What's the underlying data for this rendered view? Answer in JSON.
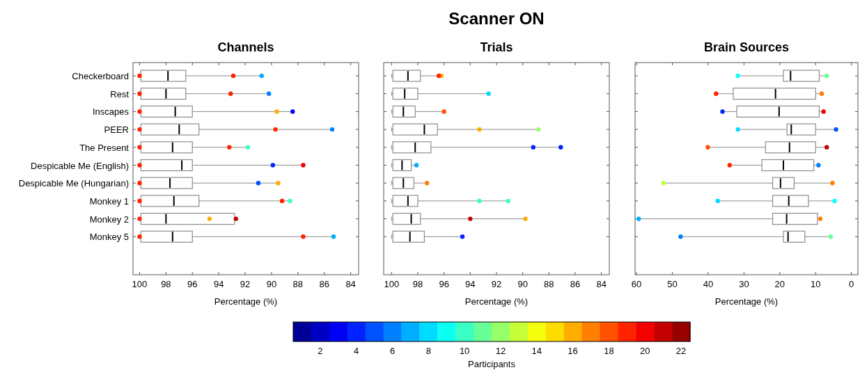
{
  "chart_data": [
    {
      "type": "box",
      "orientation": "horizontal",
      "title": "Channels",
      "xlabel": "Percentage (%)",
      "categories": [
        "Checkerboard",
        "Rest",
        "Inscapes",
        "PEER",
        "The Present",
        "Despicable Me (English)",
        "Despicable Me (Hungarian)",
        "Monkey 1",
        "Monkey 2",
        "Monkey 5"
      ],
      "xlim": [
        100.5,
        83.4
      ],
      "xticks": [
        100,
        98,
        96,
        94,
        92,
        90,
        88,
        86,
        84
      ],
      "boxes": [
        {
          "low": 90.75,
          "q1": 96.5,
          "median": 97.85,
          "q3": 99.9,
          "high": 100
        },
        {
          "low": 90.2,
          "q1": 96.5,
          "median": 98.0,
          "q3": 99.9,
          "high": 100
        },
        {
          "low": 88.4,
          "q1": 96.0,
          "median": 97.3,
          "q3": 99.9,
          "high": 100
        },
        {
          "low": 85.4,
          "q1": 95.5,
          "median": 97.0,
          "q3": 99.9,
          "high": 100
        },
        {
          "low": 91.8,
          "q1": 96.0,
          "median": 97.5,
          "q3": 99.9,
          "high": 100
        },
        {
          "low": 87.6,
          "q1": 96.0,
          "median": 96.8,
          "q3": 99.9,
          "high": 100
        },
        {
          "low": 89.5,
          "q1": 96.0,
          "median": 97.7,
          "q3": 99.9,
          "high": 100
        },
        {
          "low": 88.6,
          "q1": 95.5,
          "median": 97.4,
          "q3": 99.9,
          "high": 100
        },
        {
          "low": 92.7,
          "q1": 92.8,
          "median": 98.0,
          "q3": 99.9,
          "high": 100
        },
        {
          "low": 85.3,
          "q1": 96.0,
          "median": 97.5,
          "q3": 99.9,
          "high": 100
        }
      ],
      "series": [
        {
          "type": "scatter",
          "x": [
            "Checkerboard",
            "Checkerboard",
            "Checkerboard",
            "Rest",
            "Rest",
            "Rest",
            "Inscapes",
            "Inscapes",
            "Inscapes",
            "PEER",
            "PEER",
            "PEER",
            "The Present",
            "The Present",
            "The Present",
            "Despicable Me (English)",
            "Despicable Me (English)",
            "Despicable Me (English)",
            "Despicable Me (Hungarian)",
            "Despicable Me (Hungarian)",
            "Despicable Me (Hungarian)",
            "Monkey 1",
            "Monkey 1",
            "Monkey 1",
            "Monkey 2",
            "Monkey 2",
            "Monkey 2",
            "Monkey 5",
            "Monkey 5",
            "Monkey 5"
          ],
          "values": [
            90.75,
            92.9,
            100,
            90.2,
            93.1,
            100,
            88.4,
            89.6,
            100,
            85.4,
            89.7,
            100,
            91.8,
            93.2,
            100,
            87.6,
            89.9,
            100,
            89.5,
            91.0,
            100,
            88.6,
            89.2,
            100,
            92.7,
            94.7,
            100,
            85.3,
            87.6,
            100
          ],
          "colors": [
            "#00aeff",
            "#ff2300",
            "#ff2300",
            "#0080ff",
            "#ff2300",
            "#ff2300",
            "#0000f3",
            "#ffae00",
            "#ff2300",
            "#0080ff",
            "#ff2300",
            "#ff2300",
            "#3affc5",
            "#ff2300",
            "#ff2300",
            "#f30000",
            "#0023ff",
            "#ff2300",
            "#ffae00",
            "#0051ff",
            "#ff2300",
            "#3affc5",
            "#ff2300",
            "#ff2300",
            "#c50000",
            "#ffae00",
            "#ff2300",
            "#00aeff",
            "#ff2300",
            "#ff2300"
          ]
        }
      ]
    },
    {
      "type": "box",
      "orientation": "horizontal",
      "title": "Scanner ON",
      "subtitle": "Trials",
      "xlabel": "Percentage (%)",
      "tick_labels": "x",
      "categories": [
        "Checkerboard",
        "Rest",
        "Inscapes",
        "PEER",
        "The Present",
        "Despicable Me (English)",
        "Despicable Me (Hungarian)",
        "Monkey 1",
        "Monkey 2",
        "Monkey 5"
      ],
      "xlim": [
        100.6,
        83.4
      ],
      "xticks": [
        100,
        98,
        96,
        94,
        92,
        90,
        88,
        86,
        84
      ],
      "boxes": [
        {
          "low": 96.2,
          "q1": 97.8,
          "median": 98.75,
          "q3": 99.9,
          "high": 100
        },
        {
          "low": 92.6,
          "q1": 98.0,
          "median": 99.0,
          "q3": 99.9,
          "high": 100
        },
        {
          "low": 96.0,
          "q1": 98.2,
          "median": 99.1,
          "q3": 99.9,
          "high": 100
        },
        {
          "low": 88.8,
          "q1": 96.5,
          "median": 97.5,
          "q3": 99.9,
          "high": 100
        },
        {
          "low": 87.1,
          "q1": 97.0,
          "median": 98.2,
          "q3": 99.9,
          "high": 100
        },
        {
          "low": 98.1,
          "q1": 98.5,
          "median": 99.2,
          "q3": 99.9,
          "high": 100
        },
        {
          "low": 97.3,
          "q1": 98.3,
          "median": 99.1,
          "q3": 99.9,
          "high": 100
        },
        {
          "low": 91.1,
          "q1": 98.0,
          "median": 98.75,
          "q3": 99.9,
          "high": 100
        },
        {
          "low": 89.8,
          "q1": 97.8,
          "median": 98.5,
          "q3": 99.9,
          "high": 100
        },
        {
          "low": 94.6,
          "q1": 97.5,
          "median": 98.6,
          "q3": 99.9,
          "high": 100
        }
      ],
      "series": [
        {
          "type": "scatter",
          "x": [
            "Checkerboard",
            "Checkerboard",
            "Rest",
            "Inscapes",
            "PEER",
            "PEER",
            "The Present",
            "The Present",
            "Despicable Me (English)",
            "Despicable Me (Hungarian)",
            "Monkey 1",
            "Monkey 1",
            "Monkey 2",
            "Monkey 2",
            "Monkey 5"
          ],
          "values": [
            96.2,
            96.4,
            92.6,
            96.0,
            88.8,
            93.3,
            87.1,
            89.2,
            98.1,
            97.3,
            91.1,
            93.3,
            89.8,
            94.0,
            94.6
          ],
          "colors": [
            "#ffae00",
            "#ff2300",
            "#00dcff",
            "#ff5100",
            "#97ff68",
            "#ffae00",
            "#0023ff",
            "#0023ff",
            "#00aeff",
            "#ff8000",
            "#3affc5",
            "#3affc5",
            "#ffae00",
            "#c50000",
            "#0023ff"
          ]
        }
      ]
    },
    {
      "type": "box",
      "orientation": "horizontal",
      "title": "Brain Sources",
      "xlabel": "Percentage (%)",
      "tick_labels": "x",
      "categories": [
        "Checkerboard",
        "Rest",
        "Inscapes",
        "PEER",
        "The Present",
        "Despicable Me (English)",
        "Despicable Me (Hungarian)",
        "Monkey 1",
        "Monkey 2",
        "Monkey 5"
      ],
      "xlim": [
        60.4,
        -1.8
      ],
      "xticks": [
        60,
        50,
        40,
        30,
        20,
        10,
        0
      ],
      "clim": [
        0.5,
        22.5
      ],
      "cticks": [
        2,
        4,
        6,
        8,
        10,
        12,
        14,
        16,
        18,
        20,
        22
      ],
      "clabel": "Participants",
      "boxes": [
        {
          "low": 6.9,
          "q1": 9.0,
          "median": 17.0,
          "q3": 19.0,
          "high": 31.7
        },
        {
          "low": 8.3,
          "q1": 10.0,
          "median": 21.2,
          "q3": 33.0,
          "high": 37.8
        },
        {
          "low": 7.8,
          "q1": 9.0,
          "median": 20.2,
          "q3": 32.0,
          "high": 36.0
        },
        {
          "low": 4.3,
          "q1": 10.0,
          "median": 16.8,
          "q3": 18.0,
          "high": 31.7
        },
        {
          "low": 6.9,
          "q1": 10.0,
          "median": 17.3,
          "q3": 24.0,
          "high": 40.1
        },
        {
          "low": 9.2,
          "q1": 10.5,
          "median": 19.0,
          "q3": 25.0,
          "high": 34.0
        },
        {
          "low": 5.3,
          "q1": 16.0,
          "median": 19.8,
          "q3": 22.0,
          "high": 52.5
        },
        {
          "low": 4.7,
          "q1": 12.0,
          "median": 17.5,
          "q3": 22.0,
          "high": 37.3
        },
        {
          "low": 8.7,
          "q1": 9.5,
          "median": 18.1,
          "q3": 22.0,
          "high": 59.4
        },
        {
          "low": 5.8,
          "q1": 13.0,
          "median": 17.7,
          "q3": 19.0,
          "high": 47.7
        }
      ],
      "series": [
        {
          "type": "scatter",
          "x": [
            "Checkerboard",
            "Checkerboard",
            "Rest",
            "Rest",
            "Inscapes",
            "Inscapes",
            "PEER",
            "PEER",
            "The Present",
            "The Present",
            "Despicable Me (English)",
            "Despicable Me (English)",
            "Despicable Me (Hungarian)",
            "Despicable Me (Hungarian)",
            "Monkey 1",
            "Monkey 1",
            "Monkey 2",
            "Monkey 2",
            "Monkey 5",
            "Monkey 5"
          ],
          "values": [
            31.7,
            6.9,
            37.8,
            8.3,
            36.0,
            7.8,
            31.7,
            4.3,
            40.1,
            6.9,
            34.0,
            9.2,
            52.5,
            5.3,
            37.3,
            4.7,
            59.4,
            8.7,
            47.7,
            5.8
          ],
          "colors": [
            "#0bfff3",
            "#68ff97",
            "#ff2300",
            "#ff8000",
            "#0023ff",
            "#f30000",
            "#00dcff",
            "#0051ff",
            "#ff5100",
            "#c50000",
            "#ff2300",
            "#0080ff",
            "#c5ff3a",
            "#ff8000",
            "#00dcff",
            "#0bfff3",
            "#00aeff",
            "#ff8000",
            "#0080ff",
            "#68ff97"
          ]
        }
      ]
    }
  ]
}
